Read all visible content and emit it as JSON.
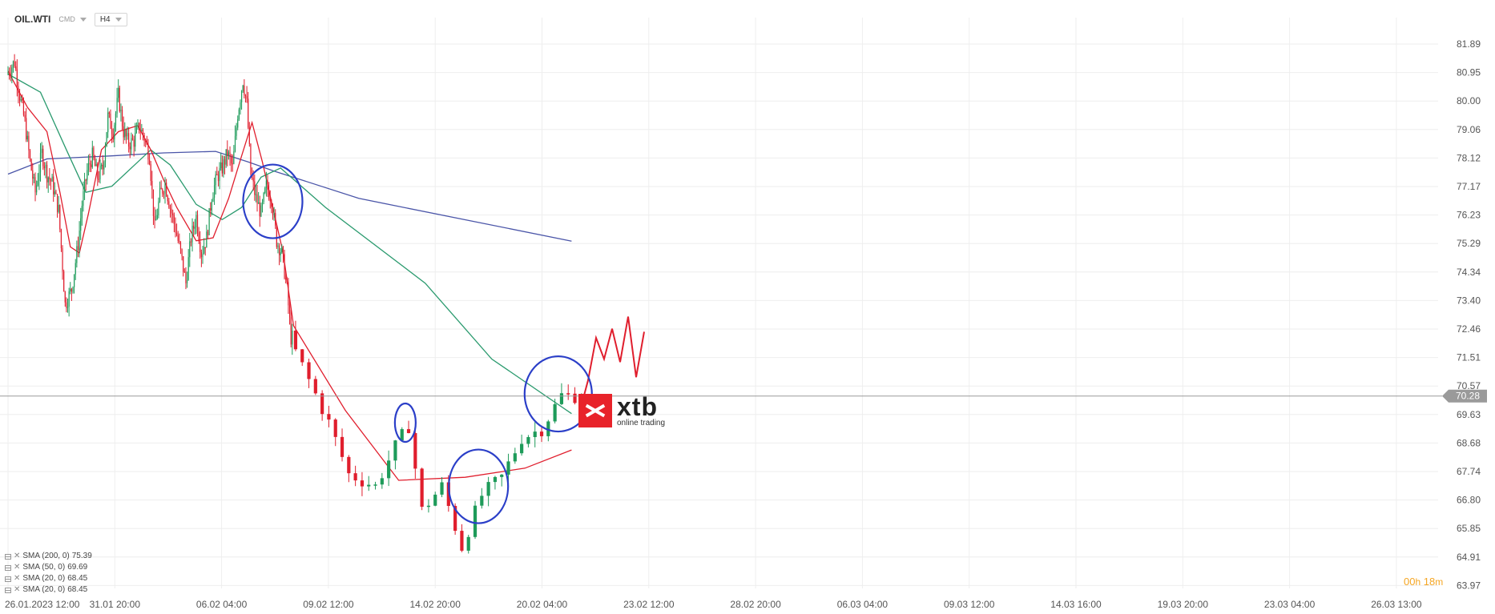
{
  "header": {
    "symbol": "OIL.WTI",
    "market": "CMD",
    "timeframe": "H4"
  },
  "watermark": {
    "name": "xtb",
    "tagline": "online trading"
  },
  "price_tag": "70.28",
  "timer": {
    "hours": "00",
    "hours_unit": "h",
    "minutes": "18",
    "minutes_unit": "m"
  },
  "legend": [
    {
      "label": "SMA (200, 0)",
      "value": "75.39"
    },
    {
      "label": "SMA (50, 0)",
      "value": "69.69"
    },
    {
      "label": "SMA (20, 0)",
      "value": "68.45"
    },
    {
      "label": "SMA (20, 0)",
      "value": "68.45"
    }
  ],
  "colors": {
    "bull": "#1e9b5a",
    "bear": "#e01e2d",
    "sma200": "#4a55a8",
    "sma50": "#2a9a6e",
    "sma20": "#e01e2d",
    "circle": "#2b3fc8",
    "grid": "#eeeeee",
    "price_line": "#9a9a9a",
    "projection": "#e01e2d"
  },
  "chart_data": {
    "type": "candlestick",
    "ylim": [
      63.5,
      82.5
    ],
    "y_ticks": [
      "81.89",
      "80.95",
      "80.00",
      "79.06",
      "78.12",
      "77.17",
      "76.23",
      "75.29",
      "74.34",
      "73.40",
      "72.46",
      "71.51",
      "70.57",
      "69.63",
      "68.68",
      "67.74",
      "66.80",
      "65.85",
      "64.91",
      "63.97"
    ],
    "x_ticks": [
      "26.01.2023 12:00",
      "31.01 20:00",
      "06.02 04:00",
      "09.02 12:00",
      "14.02 20:00",
      "20.02 04:00",
      "23.02 12:00",
      "28.02 20:00",
      "06.03 04:00",
      "09.03 12:00",
      "14.03 16:00",
      "19.03 20:00",
      "23.03 04:00",
      "26.03 13:00"
    ],
    "last_price": 70.28,
    "candles_count": 220,
    "anchors": [
      [
        0,
        80.9
      ],
      [
        6,
        81.3
      ],
      [
        10,
        80.2
      ],
      [
        14,
        79.3
      ],
      [
        18,
        78.0
      ],
      [
        22,
        77.0
      ],
      [
        27,
        78.3
      ],
      [
        31,
        77.6
      ],
      [
        35,
        77.3
      ],
      [
        40,
        76.4
      ],
      [
        45,
        73.3
      ],
      [
        50,
        73.8
      ],
      [
        55,
        75.3
      ],
      [
        58,
        76.6
      ],
      [
        62,
        77.7
      ],
      [
        66,
        78.2
      ],
      [
        70,
        77.5
      ],
      [
        74,
        77.8
      ],
      [
        78,
        79.5
      ],
      [
        82,
        79.0
      ],
      [
        86,
        80.2
      ],
      [
        90,
        79.0
      ],
      [
        94,
        78.6
      ],
      [
        98,
        78.7
      ],
      [
        102,
        79.2
      ],
      [
        106,
        78.8
      ],
      [
        110,
        78.2
      ],
      [
        114,
        75.8
      ],
      [
        118,
        76.9
      ],
      [
        122,
        77.3
      ],
      [
        126,
        76.5
      ],
      [
        130,
        75.8
      ],
      [
        134,
        75.0
      ],
      [
        138,
        74.0
      ],
      [
        142,
        75.5
      ],
      [
        146,
        76.2
      ],
      [
        150,
        75.0
      ],
      [
        154,
        75.5
      ],
      [
        158,
        76.9
      ],
      [
        162,
        77.5
      ],
      [
        166,
        77.8
      ],
      [
        170,
        78.3
      ],
      [
        174,
        77.8
      ],
      [
        178,
        79.6
      ],
      [
        182,
        80.7
      ],
      [
        185,
        79.9
      ],
      [
        188,
        77.6
      ],
      [
        192,
        76.8
      ],
      [
        196,
        76.3
      ],
      [
        200,
        77.2
      ],
      [
        204,
        76.8
      ],
      [
        208,
        75.4
      ],
      [
        212,
        75.0
      ],
      [
        216,
        73.8
      ],
      [
        219,
        72.2
      ]
    ],
    "anchors2": [
      [
        0,
        72.2
      ],
      [
        3,
        70.8
      ],
      [
        6,
        69.4
      ],
      [
        9,
        67.7
      ],
      [
        13,
        67.3
      ],
      [
        16,
        68.6
      ],
      [
        18,
        69.3
      ],
      [
        20,
        66.5
      ],
      [
        23,
        67.3
      ],
      [
        26,
        65.3
      ],
      [
        29,
        67.0
      ],
      [
        32,
        67.6
      ],
      [
        35,
        68.9
      ],
      [
        38,
        69.2
      ],
      [
        41,
        70.3
      ],
      [
        44,
        70.28
      ]
    ],
    "series": [
      {
        "name": "SMA (200, 0)",
        "points": [
          [
            0,
            77.6
          ],
          [
            30,
            78.1
          ],
          [
            80,
            78.2
          ],
          [
            120,
            78.3
          ],
          [
            160,
            78.35
          ],
          [
            185,
            78.0
          ],
          [
            205,
            77.7
          ],
          [
            230,
            76.8
          ],
          [
            262,
            75.39
          ]
        ]
      },
      {
        "name": "SMA (50, 0)",
        "points": [
          [
            0,
            80.9
          ],
          [
            25,
            80.3
          ],
          [
            45,
            78.4
          ],
          [
            60,
            77.0
          ],
          [
            80,
            77.2
          ],
          [
            100,
            78.0
          ],
          [
            110,
            78.4
          ],
          [
            125,
            77.9
          ],
          [
            145,
            76.6
          ],
          [
            165,
            76.1
          ],
          [
            180,
            76.5
          ],
          [
            195,
            77.5
          ],
          [
            210,
            77.8
          ],
          [
            225,
            76.5
          ],
          [
            240,
            74.0
          ],
          [
            250,
            71.5
          ],
          [
            262,
            69.7
          ]
        ]
      },
      {
        "name": "SMA (20, 0)",
        "points": [
          [
            0,
            81.0
          ],
          [
            15,
            79.8
          ],
          [
            30,
            79.0
          ],
          [
            40,
            77.0
          ],
          [
            48,
            75.2
          ],
          [
            55,
            75.0
          ],
          [
            62,
            76.3
          ],
          [
            72,
            78.4
          ],
          [
            85,
            79.0
          ],
          [
            100,
            79.2
          ],
          [
            110,
            78.4
          ],
          [
            120,
            77.4
          ],
          [
            130,
            76.5
          ],
          [
            145,
            75.4
          ],
          [
            158,
            75.5
          ],
          [
            170,
            76.8
          ],
          [
            180,
            78.2
          ],
          [
            188,
            79.3
          ],
          [
            196,
            78.0
          ],
          [
            204,
            76.5
          ],
          [
            212,
            75.0
          ],
          [
            220,
            72.6
          ],
          [
            228,
            69.8
          ],
          [
            236,
            67.5
          ],
          [
            246,
            67.6
          ],
          [
            255,
            67.9
          ],
          [
            262,
            68.5
          ]
        ]
      }
    ],
    "projection": [
      [
        70.8
      ],
      [
        72.2
      ],
      [
        71.5
      ],
      [
        72.5
      ],
      [
        71.4
      ],
      [
        72.9
      ],
      [
        70.9
      ],
      [
        72.4
      ]
    ],
    "circles": [
      {
        "t": 204,
        "price": 76.7,
        "rx": 37,
        "ry": 46
      },
      {
        "t": 237,
        "price": 69.4,
        "rx": 13,
        "ry": 24
      },
      {
        "t": 248,
        "price": 67.3,
        "rx": 37,
        "ry": 46
      },
      {
        "t": 260,
        "price": 70.35,
        "rx": 42,
        "ry": 47
      }
    ]
  }
}
